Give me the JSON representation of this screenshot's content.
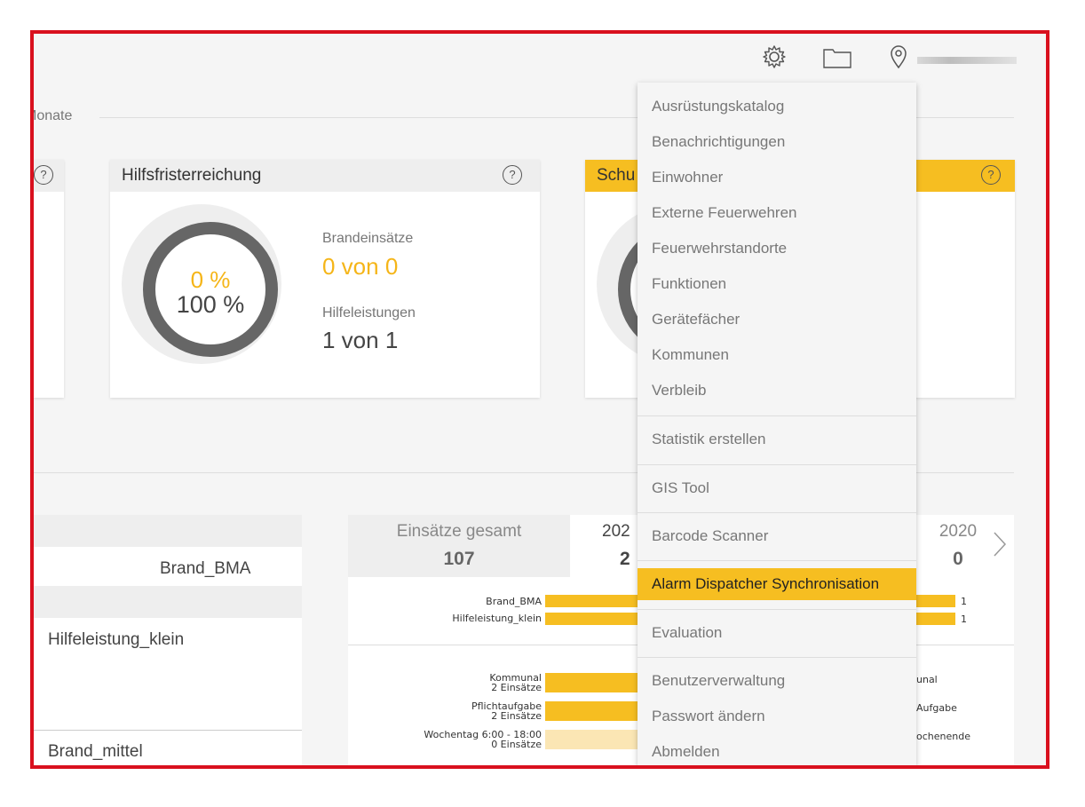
{
  "header": {
    "icons": [
      "gear-icon",
      "folder-icon",
      "location-pin-icon"
    ],
    "section_label": "Monate"
  },
  "cards": {
    "left_partial": {
      "help": "?"
    },
    "hilfsfrist": {
      "title": "Hilfsfristerreichung",
      "help": "?",
      "pct_fire": "0 %",
      "pct_help": "100 %",
      "brand_label": "Brandeinsätze",
      "brand_value": "0 von 0",
      "hilfe_label": "Hilfeleistungen",
      "hilfe_value": "1 von 1"
    },
    "right_partial": {
      "title": "Schu",
      "help": "?"
    }
  },
  "table": {
    "rows": [
      "Brand_BMA",
      "Hilfeleistung_klein",
      "Brand_mittel"
    ]
  },
  "stats": {
    "total_label": "Einsätze gesamt",
    "total_value": "107",
    "year_partial_label": "202",
    "year_partial_value": "2",
    "year_right_label": "2020",
    "year_right_value": "0",
    "bars_types": [
      {
        "label": "Brand_BMA",
        "right_value": "1"
      },
      {
        "label": "Hilfeleistung_klein",
        "right_value": "1"
      }
    ],
    "bars_categories": [
      {
        "label": "Kommunal",
        "sub": "2 Einsätze",
        "right_label": "unal"
      },
      {
        "label": "Pflichtaufgabe",
        "sub": "2 Einsätze",
        "right_label": "Aufgabe"
      },
      {
        "label": "Wochentag 6:00 - 18:00",
        "sub": "0 Einsätze",
        "right_label": "ochenende"
      }
    ]
  },
  "menu": {
    "items": [
      "Ausrüstungskatalog",
      "Benachrichtigungen",
      "Einwohner",
      "Externe Feuerwehren",
      "Feuerwehrstandorte",
      "Funktionen",
      "Gerätefächer",
      "Kommunen",
      "Verbleib",
      "Statistik erstellen",
      "GIS Tool",
      "Barcode Scanner",
      "Alarm Dispatcher Synchronisation",
      "Evaluation",
      "Benutzerverwaltung",
      "Passwort ändern",
      "Abmelden"
    ],
    "highlighted": "Alarm Dispatcher Synchronisation",
    "accent": "#f6be21"
  },
  "colors": {
    "frame": "#d9101e",
    "accent": "#f6be21",
    "dark_ring": "#666666"
  }
}
